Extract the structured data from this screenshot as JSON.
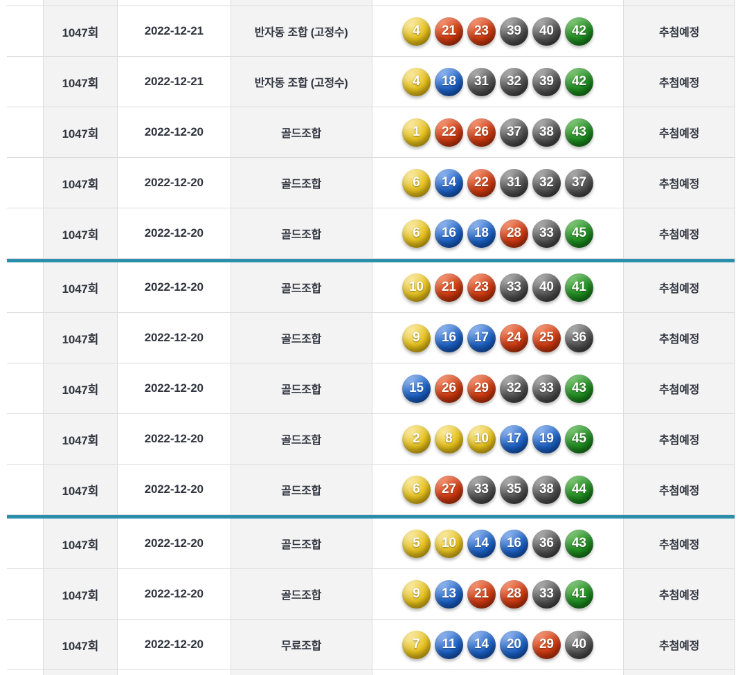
{
  "table": {
    "rows": [
      {
        "round": "1047회",
        "date": "2022-12-21",
        "type": "반자동 조합 (고정수)",
        "numbers": [
          4,
          21,
          23,
          39,
          40,
          42
        ],
        "status": "추첨예정"
      },
      {
        "round": "1047회",
        "date": "2022-12-21",
        "type": "반자동 조합 (고정수)",
        "numbers": [
          4,
          18,
          31,
          32,
          39,
          42
        ],
        "status": "추첨예정"
      },
      {
        "round": "1047회",
        "date": "2022-12-20",
        "type": "골드조합",
        "numbers": [
          1,
          22,
          26,
          37,
          38,
          43
        ],
        "status": "추첨예정"
      },
      {
        "round": "1047회",
        "date": "2022-12-20",
        "type": "골드조합",
        "numbers": [
          6,
          14,
          22,
          31,
          32,
          37
        ],
        "status": "추첨예정"
      },
      {
        "round": "1047회",
        "date": "2022-12-20",
        "type": "골드조합",
        "numbers": [
          6,
          16,
          18,
          28,
          33,
          45
        ],
        "status": "추첨예정"
      },
      {
        "round": "1047회",
        "date": "2022-12-20",
        "type": "골드조합",
        "numbers": [
          10,
          21,
          23,
          33,
          40,
          41
        ],
        "status": "추첨예정"
      },
      {
        "round": "1047회",
        "date": "2022-12-20",
        "type": "골드조합",
        "numbers": [
          9,
          16,
          17,
          24,
          25,
          36
        ],
        "status": "추첨예정"
      },
      {
        "round": "1047회",
        "date": "2022-12-20",
        "type": "골드조합",
        "numbers": [
          15,
          26,
          29,
          32,
          33,
          43
        ],
        "status": "추첨예정"
      },
      {
        "round": "1047회",
        "date": "2022-12-20",
        "type": "골드조합",
        "numbers": [
          2,
          8,
          10,
          17,
          19,
          45
        ],
        "status": "추첨예정"
      },
      {
        "round": "1047회",
        "date": "2022-12-20",
        "type": "골드조합",
        "numbers": [
          6,
          27,
          33,
          35,
          38,
          44
        ],
        "status": "추첨예정"
      },
      {
        "round": "1047회",
        "date": "2022-12-20",
        "type": "골드조합",
        "numbers": [
          5,
          10,
          14,
          16,
          36,
          43
        ],
        "status": "추첨예정"
      },
      {
        "round": "1047회",
        "date": "2022-12-20",
        "type": "골드조합",
        "numbers": [
          9,
          13,
          21,
          28,
          33,
          41
        ],
        "status": "추첨예정"
      },
      {
        "round": "1047회",
        "date": "2022-12-20",
        "type": "무료조합",
        "numbers": [
          7,
          11,
          14,
          20,
          29,
          40
        ],
        "status": "추첨예정"
      }
    ],
    "group_divider_after_rows": [
      5,
      10
    ]
  },
  "colors": {
    "divider_teal": "#2b8fab",
    "text": "#30353f",
    "shaded_cell": "#f3f3f3",
    "row_border": "#dcdcdc",
    "ball_palette": {
      "yellow": {
        "light": "#f8e globe",
        "base": "#e9c41c",
        "dark": "#bb930a"
      },
      "blue": {
        "light": "#7aa6ea",
        "base": "#1c63c9",
        "dark": "#0a3e92"
      },
      "red": {
        "light": "#f07a50",
        "base": "#d03a10",
        "dark": "#992303"
      },
      "gray": {
        "light": "#9d9d9d",
        "base": "#535353",
        "dark": "#282828"
      },
      "green": {
        "light": "#5eb551",
        "base": "#1f8e21",
        "dark": "#0a5c0e"
      }
    },
    "ball_ranges": [
      {
        "max": 10,
        "color": "yellow"
      },
      {
        "max": 20,
        "color": "blue"
      },
      {
        "max": 30,
        "color": "red"
      },
      {
        "max": 40,
        "color": "gray"
      },
      {
        "max": 45,
        "color": "green"
      }
    ]
  }
}
